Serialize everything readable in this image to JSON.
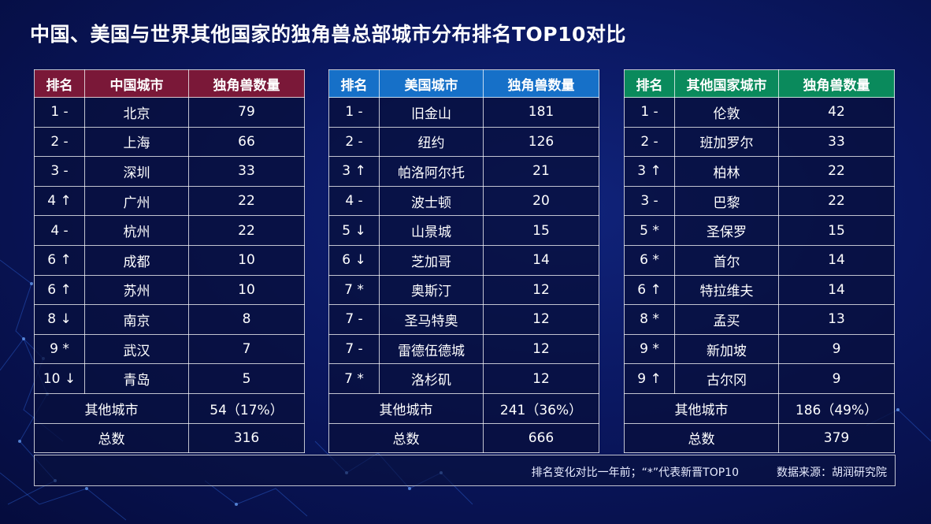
{
  "title": "中国、美国与世界其他国家的独角兽总部城市分布排名TOP10对比",
  "colors": {
    "china_header": "#7a1838",
    "us_header": "#1670c8",
    "other_header": "#0a8a5c",
    "background": "#0a1760"
  },
  "china": {
    "headers": [
      "排名",
      "中国城市",
      "独角兽数量"
    ],
    "rows": [
      {
        "rank": "1 -",
        "city": "北京",
        "count": "79"
      },
      {
        "rank": "2 -",
        "city": "上海",
        "count": "66"
      },
      {
        "rank": "3 -",
        "city": "深圳",
        "count": "33"
      },
      {
        "rank": "4 ↑",
        "city": "广州",
        "count": "22"
      },
      {
        "rank": "4 -",
        "city": "杭州",
        "count": "22"
      },
      {
        "rank": "6 ↑",
        "city": "成都",
        "count": "10"
      },
      {
        "rank": "6 ↑",
        "city": "苏州",
        "count": "10"
      },
      {
        "rank": "8 ↓",
        "city": "南京",
        "count": "8"
      },
      {
        "rank": "9 *",
        "city": "武汉",
        "count": "7"
      },
      {
        "rank": "10 ↓",
        "city": "青岛",
        "count": "5"
      }
    ],
    "others": {
      "label": "其他城市",
      "value": "54（17%）"
    },
    "total": {
      "label": "总数",
      "value": "316"
    }
  },
  "us": {
    "headers": [
      "排名",
      "美国城市",
      "独角兽数量"
    ],
    "rows": [
      {
        "rank": "1 -",
        "city": "旧金山",
        "count": "181"
      },
      {
        "rank": "2 -",
        "city": "纽约",
        "count": "126"
      },
      {
        "rank": "3 ↑",
        "city": "帕洛阿尔托",
        "count": "21"
      },
      {
        "rank": "4 -",
        "city": "波士顿",
        "count": "20"
      },
      {
        "rank": "5 ↓",
        "city": "山景城",
        "count": "15"
      },
      {
        "rank": "6 ↓",
        "city": "芝加哥",
        "count": "14"
      },
      {
        "rank": "7 *",
        "city": "奥斯汀",
        "count": "12"
      },
      {
        "rank": "7 -",
        "city": "圣马特奥",
        "count": "12"
      },
      {
        "rank": "7 -",
        "city": "雷德伍德城",
        "count": "12"
      },
      {
        "rank": "7 *",
        "city": "洛杉矶",
        "count": "12"
      }
    ],
    "others": {
      "label": "其他城市",
      "value": "241（36%）"
    },
    "total": {
      "label": "总数",
      "value": "666"
    }
  },
  "other": {
    "headers": [
      "排名",
      "其他国家城市",
      "独角兽数量"
    ],
    "rows": [
      {
        "rank": "1 -",
        "city": "伦敦",
        "count": "42"
      },
      {
        "rank": "2 -",
        "city": "班加罗尔",
        "count": "33"
      },
      {
        "rank": "3 ↑",
        "city": "柏林",
        "count": "22"
      },
      {
        "rank": "3 -",
        "city": "巴黎",
        "count": "22"
      },
      {
        "rank": "5 *",
        "city": "圣保罗",
        "count": "15"
      },
      {
        "rank": "6 *",
        "city": "首尔",
        "count": "14"
      },
      {
        "rank": "6 ↑",
        "city": "特拉维夫",
        "count": "14"
      },
      {
        "rank": "8 *",
        "city": "孟买",
        "count": "13"
      },
      {
        "rank": "9 *",
        "city": "新加坡",
        "count": "9"
      },
      {
        "rank": "9 ↑",
        "city": "古尔冈",
        "count": "9"
      }
    ],
    "others": {
      "label": "其他城市",
      "value": "186（49%）"
    },
    "total": {
      "label": "总数",
      "value": "379"
    }
  },
  "footer": {
    "note": "排名变化对比一年前；“*”代表新晋TOP10",
    "source": "数据来源：胡润研究院"
  }
}
